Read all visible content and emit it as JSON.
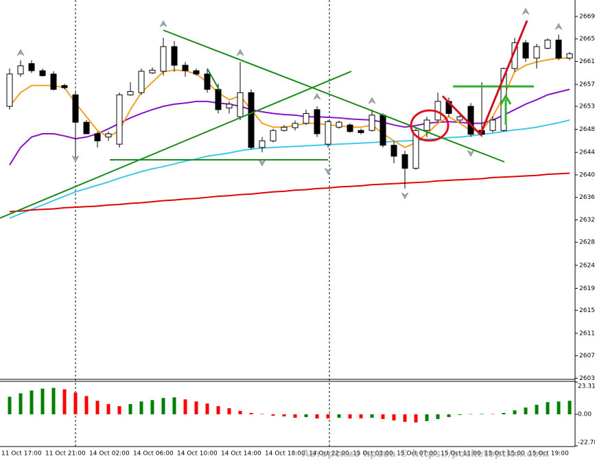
{
  "chart_data": [
    {
      "type": "candlestick",
      "categories": [
        "11 Oct 17:00",
        null,
        null,
        null,
        "11 Oct 21:00",
        null,
        null,
        null,
        "14 Oct 02:00",
        null,
        null,
        null,
        "14 Oct 06:00",
        null,
        null,
        null,
        "14 Oct 10:00",
        null,
        null,
        null,
        "14 Oct 14:00",
        null,
        null,
        null,
        "14 Oct 18:00",
        null,
        null,
        null,
        "14 Oct 22:00",
        null,
        null,
        null,
        "15 Oct 03:00",
        null,
        null,
        null,
        "15 Oct 07:00",
        null,
        null,
        null,
        "15 Oct 11:00",
        null,
        null,
        null,
        "15 Oct 15:00",
        null,
        null,
        null,
        "15 Oct 19:00",
        null,
        null,
        null
      ],
      "open": [
        2652.6,
        2658.5,
        2660.4,
        2659.1,
        2658.5,
        2656.4,
        2654.7,
        2649.7,
        2647.6,
        2647.0,
        2645.7,
        2654.7,
        2655.1,
        2658.7,
        2659.0,
        2663.5,
        2660.1,
        2659.1,
        2658.5,
        2655.7,
        2652.3,
        2650.7,
        2655.1,
        2645.1,
        2646.3,
        2648.2,
        2648.7,
        2649.5,
        2652.0,
        2645.7,
        2648.8,
        2649.2,
        2648.2,
        2648.2,
        2651.0,
        2645.5,
        2643.8,
        2641.3,
        2648.2,
        2650.1,
        2653.5,
        2650.1,
        2652.6,
        2648.2,
        2648.2,
        2648.2,
        2659.5,
        2664.2,
        2661.4,
        2663.2,
        2664.7,
        2661.4
      ],
      "high": [
        2659.5,
        2661.0,
        2661.0,
        2659.5,
        2659.0,
        2656.7,
        2655.5,
        2650.1,
        2648.0,
        2648.0,
        2655.1,
        2657.0,
        2659.5,
        2659.7,
        2665.1,
        2664.5,
        2660.7,
        2659.5,
        2659.5,
        2656.7,
        2653.5,
        2660.7,
        2655.7,
        2647.0,
        2648.5,
        2649.2,
        2650.0,
        2652.0,
        2652.6,
        2650.1,
        2650.0,
        2649.5,
        2648.5,
        2652.0,
        2651.3,
        2646.3,
        2644.5,
        2648.8,
        2650.7,
        2655.1,
        2654.2,
        2651.0,
        2653.2,
        2657.0,
        2650.7,
        2659.7,
        2665.1,
        2664.7,
        2664.0,
        2665.0,
        2665.7,
        2662.5
      ],
      "low": [
        2652.0,
        2658.0,
        2658.7,
        2658.0,
        2655.5,
        2655.7,
        2643.2,
        2647.5,
        2645.1,
        2646.3,
        2645.1,
        2654.5,
        2654.7,
        2658.5,
        2658.2,
        2658.9,
        2658.0,
        2658.2,
        2655.1,
        2651.3,
        2651.3,
        2650.1,
        2644.7,
        2644.2,
        2646.0,
        2648.0,
        2648.2,
        2649.2,
        2647.0,
        2645.1,
        2648.5,
        2647.8,
        2647.5,
        2648.0,
        2645.1,
        2642.2,
        2637.6,
        2641.0,
        2647.0,
        2649.7,
        2650.7,
        2649.8,
        2647.0,
        2647.0,
        2647.8,
        2648.0,
        2658.9,
        2660.7,
        2659.5,
        2663.0,
        2661.0,
        2661.0
      ],
      "close": [
        2658.5,
        2660.0,
        2659.1,
        2658.2,
        2655.7,
        2656.0,
        2649.7,
        2647.6,
        2646.3,
        2647.6,
        2654.7,
        2655.3,
        2659.0,
        2659.2,
        2663.5,
        2660.1,
        2659.1,
        2658.5,
        2655.7,
        2652.0,
        2653.0,
        2655.1,
        2645.1,
        2646.3,
        2648.2,
        2648.8,
        2649.5,
        2651.3,
        2647.6,
        2649.8,
        2649.7,
        2648.0,
        2647.8,
        2651.0,
        2645.5,
        2643.5,
        2641.3,
        2648.2,
        2650.1,
        2653.5,
        2651.3,
        2650.7,
        2647.5,
        2647.5,
        2650.1,
        2659.5,
        2664.2,
        2661.4,
        2663.5,
        2664.7,
        2661.4,
        2662.2
      ],
      "up_color": "#ffffff",
      "down_color": "#000000",
      "lines": [
        {
          "color": "#40c8e8",
          "values": [
            2632.2,
            2633.0,
            2633.8,
            2634.6,
            2635.4,
            2636.2,
            2637.0,
            2637.6,
            2638.2,
            2638.8,
            2639.5,
            2640.1,
            2640.7,
            2641.2,
            2641.6,
            2642.1,
            2642.6,
            2643.0,
            2643.5,
            2643.8,
            2644.1,
            2644.5,
            2644.8,
            2645.0,
            2645.1,
            2645.2,
            2645.3,
            2645.4,
            2645.5,
            2645.6,
            2645.7,
            2645.8,
            2645.9,
            2646.0,
            2646.1,
            2646.2,
            2646.3,
            2646.4,
            2646.6,
            2646.7,
            2646.9,
            2647.0,
            2647.2,
            2647.5,
            2647.7,
            2648.0,
            2648.3,
            2648.5,
            2648.8,
            2649.2,
            2649.6,
            2650.1
          ]
        },
        {
          "color": "#e00000",
          "values": [
            2633.4,
            2633.5,
            2633.7,
            2633.8,
            2633.9,
            2634.1,
            2634.2,
            2634.3,
            2634.4,
            2634.6,
            2634.7,
            2634.9,
            2635.0,
            2635.2,
            2635.4,
            2635.5,
            2635.7,
            2635.8,
            2636.0,
            2636.2,
            2636.3,
            2636.5,
            2636.6,
            2636.8,
            2637.0,
            2637.1,
            2637.3,
            2637.4,
            2637.6,
            2637.7,
            2637.9,
            2638.0,
            2638.1,
            2638.3,
            2638.4,
            2638.5,
            2638.6,
            2638.7,
            2638.8,
            2639.0,
            2639.1,
            2639.2,
            2639.3,
            2639.4,
            2639.6,
            2639.7,
            2639.8,
            2639.9,
            2640.0,
            2640.2,
            2640.3,
            2640.4
          ]
        },
        {
          "color": "#8a10c8",
          "values": [
            2641.9,
            2645.1,
            2647.0,
            2647.6,
            2647.6,
            2647.2,
            2646.7,
            2647.0,
            2647.6,
            2648.5,
            2649.5,
            2650.5,
            2651.3,
            2652.0,
            2652.6,
            2653.0,
            2653.2,
            2653.5,
            2653.5,
            2653.2,
            2653.0,
            2652.6,
            2652.0,
            2651.6,
            2651.3,
            2651.1,
            2651.0,
            2650.7,
            2650.7,
            2650.6,
            2650.5,
            2650.3,
            2650.2,
            2650.1,
            2649.7,
            2649.2,
            2648.8,
            2649.1,
            2649.5,
            2649.7,
            2649.8,
            2649.7,
            2649.5,
            2649.5,
            2650.1,
            2651.0,
            2652.0,
            2653.0,
            2653.8,
            2654.7,
            2655.2,
            2655.7
          ]
        },
        {
          "color": "#f0a020",
          "values": [
            2652.6,
            2655.1,
            2656.4,
            2656.4,
            2656.4,
            2656.0,
            2653.2,
            2650.7,
            2648.2,
            2647.0,
            2648.2,
            2652.0,
            2655.1,
            2657.0,
            2658.9,
            2659.2,
            2659.1,
            2658.5,
            2657.0,
            2655.1,
            2653.8,
            2654.5,
            2652.0,
            2649.5,
            2648.8,
            2648.8,
            2649.1,
            2649.5,
            2649.5,
            2649.2,
            2649.1,
            2648.8,
            2648.8,
            2649.2,
            2647.6,
            2646.3,
            2645.1,
            2646.0,
            2647.6,
            2649.5,
            2650.7,
            2649.5,
            2648.2,
            2648.2,
            2650.7,
            2654.5,
            2658.9,
            2660.1,
            2660.7,
            2661.1,
            2661.4,
            2661.4
          ]
        }
      ],
      "ylim": [
        2602.8,
        2672.0
      ],
      "yticks": [
        2603,
        {
          "value": 2607.1,
          "label": "2607"
        },
        {
          "value": 2611.2,
          "label": "2611"
        },
        {
          "value": 2615.4,
          "label": "2615"
        },
        {
          "value": 2619.4,
          "label": "2619"
        },
        {
          "value": 2623.6,
          "label": "2624"
        },
        {
          "value": 2627.8,
          "label": "2628"
        },
        {
          "value": 2631.9,
          "label": "2632"
        },
        2636,
        {
          "value": 2640.1,
          "label": "2640"
        },
        {
          "value": 2644.2,
          "label": "2644"
        },
        {
          "value": 2648.4,
          "label": "2648"
        },
        {
          "value": 2652.6,
          "label": "2653"
        },
        {
          "value": 2656.6,
          "label": "2657"
        },
        {
          "value": 2660.8,
          "label": "2661"
        },
        {
          "value": 2664.9,
          "label": "2665"
        },
        2669
      ]
    },
    {
      "type": "bar",
      "values": [
        12.7,
        15.2,
        17.2,
        18.6,
        19.1,
        18.1,
        15.7,
        13.2,
        9.8,
        7.4,
        5.9,
        7.4,
        9.3,
        10.3,
        11.8,
        12.3,
        10.8,
        9.3,
        7.8,
        5.9,
        4.4,
        2.5,
        1.0,
        0.3,
        -1.0,
        -1.5,
        -2.5,
        -2.0,
        -3.0,
        -3.0,
        -2.5,
        -3.0,
        -2.9,
        -2.5,
        -3.4,
        -4.4,
        -5.4,
        -5.9,
        -4.9,
        -3.4,
        -2.0,
        -0.5,
        0.2,
        0.3,
        0.2,
        1.0,
        2.9,
        4.9,
        6.9,
        8.8,
        9.3,
        9.8
      ],
      "colors": [
        "#008000",
        "#008000",
        "#008000",
        "#008000",
        "#008000",
        "#ff0000",
        "#ff0000",
        "#ff0000",
        "#ff0000",
        "#ff0000",
        "#ff0000",
        "#008000",
        "#008000",
        "#008000",
        "#008000",
        "#008000",
        "#ff0000",
        "#ff0000",
        "#ff0000",
        "#ff0000",
        "#ff0000",
        "#ff0000",
        "#ff0000",
        "#ff0000",
        "#ff0000",
        "#ff0000",
        "#ff0000",
        "#008000",
        "#ff0000",
        "#ff0000",
        "#008000",
        "#ff0000",
        "#ff0000",
        "#008000",
        "#ff0000",
        "#ff0000",
        "#ff0000",
        "#ff0000",
        "#008000",
        "#008000",
        "#008000",
        "#008000",
        "#008000",
        "#008000",
        "#ff0000",
        "#008000",
        "#008000",
        "#008000",
        "#008000",
        "#008000",
        "#008000",
        "#008000"
      ],
      "ylim": [
        -22.78,
        23.31
      ],
      "yticks": [
        23.31,
        {
          "value": 0,
          "label": "0.00"
        },
        -22.78
      ]
    }
  ],
  "watermark": "Авторские права © https://pocketoption.com"
}
